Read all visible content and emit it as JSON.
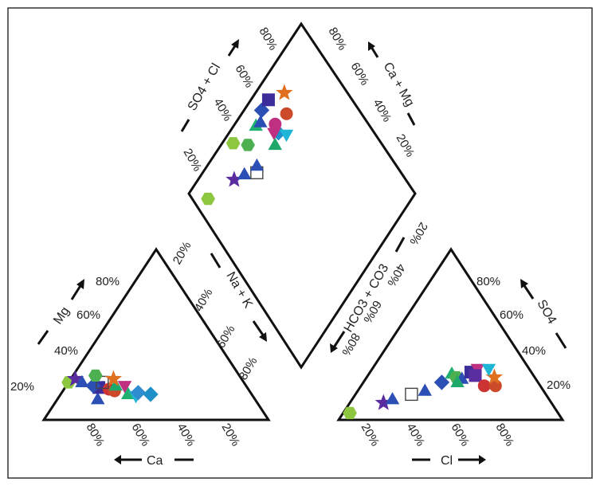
{
  "chart_data": {
    "type": "scatter",
    "subtype": "piper-diagram",
    "grid": false,
    "cation_triangle": {
      "axes": {
        "mg": {
          "label": "Mg",
          "ticks": [
            "20%",
            "40%",
            "60%",
            "80%"
          ]
        },
        "ca": {
          "label": "Ca",
          "ticks": [
            "80%",
            "60%",
            "40%",
            "20%"
          ]
        },
        "nak": {
          "label": "Na + K",
          "ticks": [
            "20%",
            "40%",
            "60%",
            "80%"
          ]
        }
      },
      "points": [
        {
          "ca": 78,
          "mg": 22,
          "shape": "hexagon",
          "color": "#8dc63f",
          "filled": true
        },
        {
          "ca": 74,
          "mg": 24,
          "shape": "star",
          "color": "#5b2ca0",
          "filled": true
        },
        {
          "ca": 70,
          "mg": 12,
          "shape": "triangle",
          "color": "#2b4fb5",
          "filled": true
        },
        {
          "ca": 72,
          "mg": 22,
          "shape": "triangle",
          "color": "#2b4fb5",
          "filled": true
        },
        {
          "ca": 66,
          "mg": 19,
          "shape": "square",
          "color": "#3b2e9a",
          "filled": true
        },
        {
          "ca": 68,
          "mg": 20,
          "shape": "diamond",
          "color": "#2b4fb5",
          "filled": true
        },
        {
          "ca": 62,
          "mg": 18,
          "shape": "circle",
          "color": "#cc3333",
          "filled": true
        },
        {
          "ca": 63,
          "mg": 22,
          "shape": "square",
          "color": "#444444",
          "filled": false
        },
        {
          "ca": 60,
          "mg": 17,
          "shape": "circle",
          "color": "#cc4a2a",
          "filled": true
        },
        {
          "ca": 58,
          "mg": 20,
          "shape": "triangle",
          "color": "#1ea86a",
          "filled": true
        },
        {
          "ca": 55,
          "mg": 15,
          "shape": "triangle",
          "color": "#20b070",
          "filled": true
        },
        {
          "ca": 52,
          "mg": 14,
          "shape": "inv-triangle",
          "color": "#1fb5d6",
          "filled": true
        },
        {
          "ca": 50,
          "mg": 16,
          "shape": "diamond",
          "color": "#2f8ccf",
          "filled": true
        },
        {
          "ca": 64,
          "mg": 26,
          "shape": "hexagon",
          "color": "#4caf50",
          "filled": true
        },
        {
          "ca": 57,
          "mg": 24,
          "shape": "star",
          "color": "#e07020",
          "filled": true
        },
        {
          "ca": 54,
          "mg": 20,
          "shape": "inv-triangle",
          "color": "#c03080",
          "filled": true
        },
        {
          "ca": 45,
          "mg": 15,
          "shape": "diamond",
          "color": "#1e90c8",
          "filled": true
        }
      ]
    },
    "anion_triangle": {
      "axes": {
        "cl": {
          "label": "Cl",
          "ticks": [
            "20%",
            "40%",
            "60%",
            "80%"
          ]
        },
        "so4": {
          "label": "SO4",
          "ticks": [
            "20%",
            "40%",
            "60%",
            "80%"
          ]
        },
        "hco3": {
          "label": "HCO3 + CO3",
          "ticks": [
            "20%",
            "40%",
            "60%",
            "80%"
          ]
        }
      },
      "points": [
        {
          "cl": 3,
          "so4": 4,
          "shape": "hexagon",
          "color": "#8dc63f",
          "filled": true
        },
        {
          "cl": 15,
          "so4": 10,
          "shape": "star",
          "color": "#5b2ca0",
          "filled": true
        },
        {
          "cl": 18,
          "so4": 12,
          "shape": "triangle",
          "color": "#2b4fb5",
          "filled": true
        },
        {
          "cl": 25,
          "so4": 15,
          "shape": "square",
          "color": "#444444",
          "filled": false
        },
        {
          "cl": 30,
          "so4": 17,
          "shape": "triangle",
          "color": "#2b4fb5",
          "filled": true
        },
        {
          "cl": 35,
          "so4": 22,
          "shape": "diamond",
          "color": "#2b4fb5",
          "filled": true
        },
        {
          "cl": 37,
          "so4": 27,
          "shape": "triangle",
          "color": "#20b070",
          "filled": true
        },
        {
          "cl": 40,
          "so4": 25,
          "shape": "hexagon",
          "color": "#4caf50",
          "filled": true
        },
        {
          "cl": 43,
          "so4": 24,
          "shape": "triangle",
          "color": "#2b4fb5",
          "filled": true
        },
        {
          "cl": 45,
          "so4": 28,
          "shape": "square",
          "color": "#3b2e9a",
          "filled": true
        },
        {
          "cl": 47,
          "so4": 30,
          "shape": "inv-triangle",
          "color": "#c03080",
          "filled": true
        },
        {
          "cl": 48,
          "so4": 26,
          "shape": "square",
          "color": "#5a2ea0",
          "filled": true
        },
        {
          "cl": 55,
          "so4": 20,
          "shape": "circle",
          "color": "#cc3333",
          "filled": true
        },
        {
          "cl": 60,
          "so4": 20,
          "shape": "circle",
          "color": "#cc4a2a",
          "filled": true
        },
        {
          "cl": 57,
          "so4": 25,
          "shape": "star",
          "color": "#e07020",
          "filled": true
        },
        {
          "cl": 52,
          "so4": 30,
          "shape": "inv-triangle",
          "color": "#1fb5d6",
          "filled": true
        },
        {
          "cl": 42,
          "so4": 22,
          "shape": "triangle",
          "color": "#1ea86a",
          "filled": true
        }
      ]
    },
    "diamond": {
      "axes": {
        "so4_cl": {
          "label": "SO4 + Cl",
          "ticks": [
            "20%",
            "40%",
            "60%",
            "80%"
          ]
        },
        "ca_mg": {
          "label": "Ca + Mg",
          "ticks": [
            "20%",
            "40%",
            "60%",
            "80%"
          ]
        }
      },
      "points": [
        {
          "so4_cl": 7,
          "ca_mg": 90,
          "shape": "hexagon",
          "color": "#8dc63f",
          "filled": true
        },
        {
          "so4_cl": 24,
          "ca_mg": 84,
          "shape": "star",
          "color": "#5b2ca0",
          "filled": true
        },
        {
          "so4_cl": 30,
          "ca_mg": 81,
          "shape": "triangle",
          "color": "#2b4fb5",
          "filled": true
        },
        {
          "so4_cl": 36,
          "ca_mg": 76,
          "shape": "square",
          "color": "#444444",
          "filled": false
        },
        {
          "so4_cl": 38,
          "ca_mg": 78,
          "shape": "triangle",
          "color": "#2b4fb5",
          "filled": true
        },
        {
          "so4_cl": 40,
          "ca_mg": 88,
          "shape": "hexagon",
          "color": "#4caf50",
          "filled": true
        },
        {
          "so4_cl": 49,
          "ca_mg": 90,
          "shape": "triangle",
          "color": "#20b070",
          "filled": true
        },
        {
          "so4_cl": 52,
          "ca_mg": 89,
          "shape": "triangle",
          "color": "#2b4fb5",
          "filled": true
        },
        {
          "so4_cl": 56,
          "ca_mg": 92,
          "shape": "diamond",
          "color": "#2b4fb5",
          "filled": true
        },
        {
          "so4_cl": 62,
          "ca_mg": 92,
          "shape": "square",
          "color": "#3b2e9a",
          "filled": true
        },
        {
          "so4_cl": 57,
          "ca_mg": 78,
          "shape": "diamond",
          "color": "#1e90c8",
          "filled": true
        },
        {
          "so4_cl": 55,
          "ca_mg": 80,
          "shape": "inv-triangle",
          "color": "#c03080",
          "filled": true
        },
        {
          "so4_cl": 58,
          "ca_mg": 82,
          "shape": "circle",
          "color": "#c03080",
          "filled": true
        },
        {
          "so4_cl": 52,
          "ca_mg": 76,
          "shape": "triangle",
          "color": "#1ea86a",
          "filled": true
        },
        {
          "so4_cl": 71,
          "ca_mg": 87,
          "shape": "star",
          "color": "#e07020",
          "filled": true
        },
        {
          "so4_cl": 66,
          "ca_mg": 80,
          "shape": "circle",
          "color": "#cc4a2a",
          "filled": true
        },
        {
          "so4_cl": 60,
          "ca_mg": 74,
          "shape": "inv-triangle",
          "color": "#1fb5d6",
          "filled": true
        },
        {
          "so4_cl": 34,
          "ca_mg": 95,
          "shape": "hexagon",
          "color": "#8dc63f",
          "filled": true
        }
      ]
    }
  }
}
